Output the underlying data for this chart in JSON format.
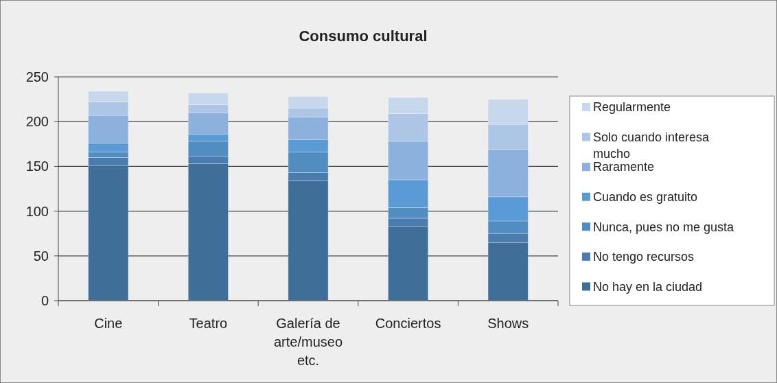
{
  "chart_data": {
    "type": "bar",
    "title": "Consumo cultural",
    "stacked": true,
    "categories": [
      "Cine",
      "Teatro",
      "Galería de arte/museo etc.",
      "Conciertos",
      "Shows"
    ],
    "series": [
      {
        "name": "No hay en la ciudad",
        "color": "#3f6e98",
        "values": [
          151,
          153,
          134,
          83,
          65
        ]
      },
      {
        "name": "No tengo recursos",
        "color": "#4a7dad",
        "values": [
          9,
          8,
          9,
          9,
          10
        ]
      },
      {
        "name": "Nunca, pues no me gusta",
        "color": "#528dc2",
        "values": [
          6,
          17,
          23,
          12,
          14
        ]
      },
      {
        "name": "Cuando es gratuito",
        "color": "#5b9bd5",
        "values": [
          10,
          8,
          14,
          31,
          27
        ]
      },
      {
        "name": "Raramente",
        "color": "#8cb1dd",
        "values": [
          31,
          24,
          25,
          43,
          53
        ]
      },
      {
        "name": "Solo cuando interesa mucho",
        "color": "#adc6e5",
        "values": [
          15,
          9,
          10,
          31,
          28
        ]
      },
      {
        "name": "Regularmente",
        "color": "#c7d7ec",
        "values": [
          12,
          13,
          13,
          18,
          28
        ]
      }
    ],
    "ylim": [
      0,
      250
    ],
    "yticks": [
      0,
      50,
      100,
      150,
      200,
      250
    ],
    "grid": "y",
    "legend": "right"
  }
}
